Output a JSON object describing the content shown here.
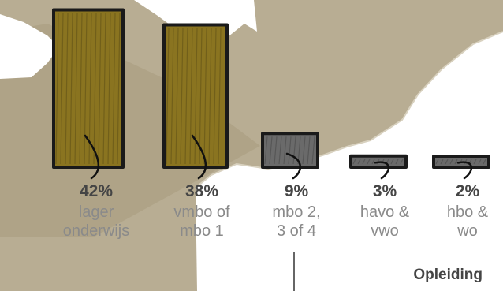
{
  "chart_data": {
    "type": "bar",
    "categories": [
      [
        "lager",
        "onderwijs"
      ],
      [
        "vmbo of",
        "mbo 1"
      ],
      [
        "mbo 2,",
        "3 of 4"
      ],
      [
        "havo &",
        "vwo"
      ],
      [
        "hbo &",
        "wo"
      ]
    ],
    "values": [
      42,
      38,
      9,
      3,
      2
    ],
    "value_labels": [
      "42%",
      "38%",
      "9%",
      "3%",
      "2%"
    ],
    "bar_colors": [
      "#8a7420",
      "#8a7420",
      "#6a6a6a",
      "#6a6a6a",
      "#6a6a6a"
    ],
    "xlabel": "Opleiding",
    "ylabel": "",
    "title": ""
  },
  "colors": {
    "map_land": "#b8ad93",
    "map_land_dark": "#a89c7e",
    "map_sea": "#ffffff",
    "outline": "#1a1a1a"
  }
}
